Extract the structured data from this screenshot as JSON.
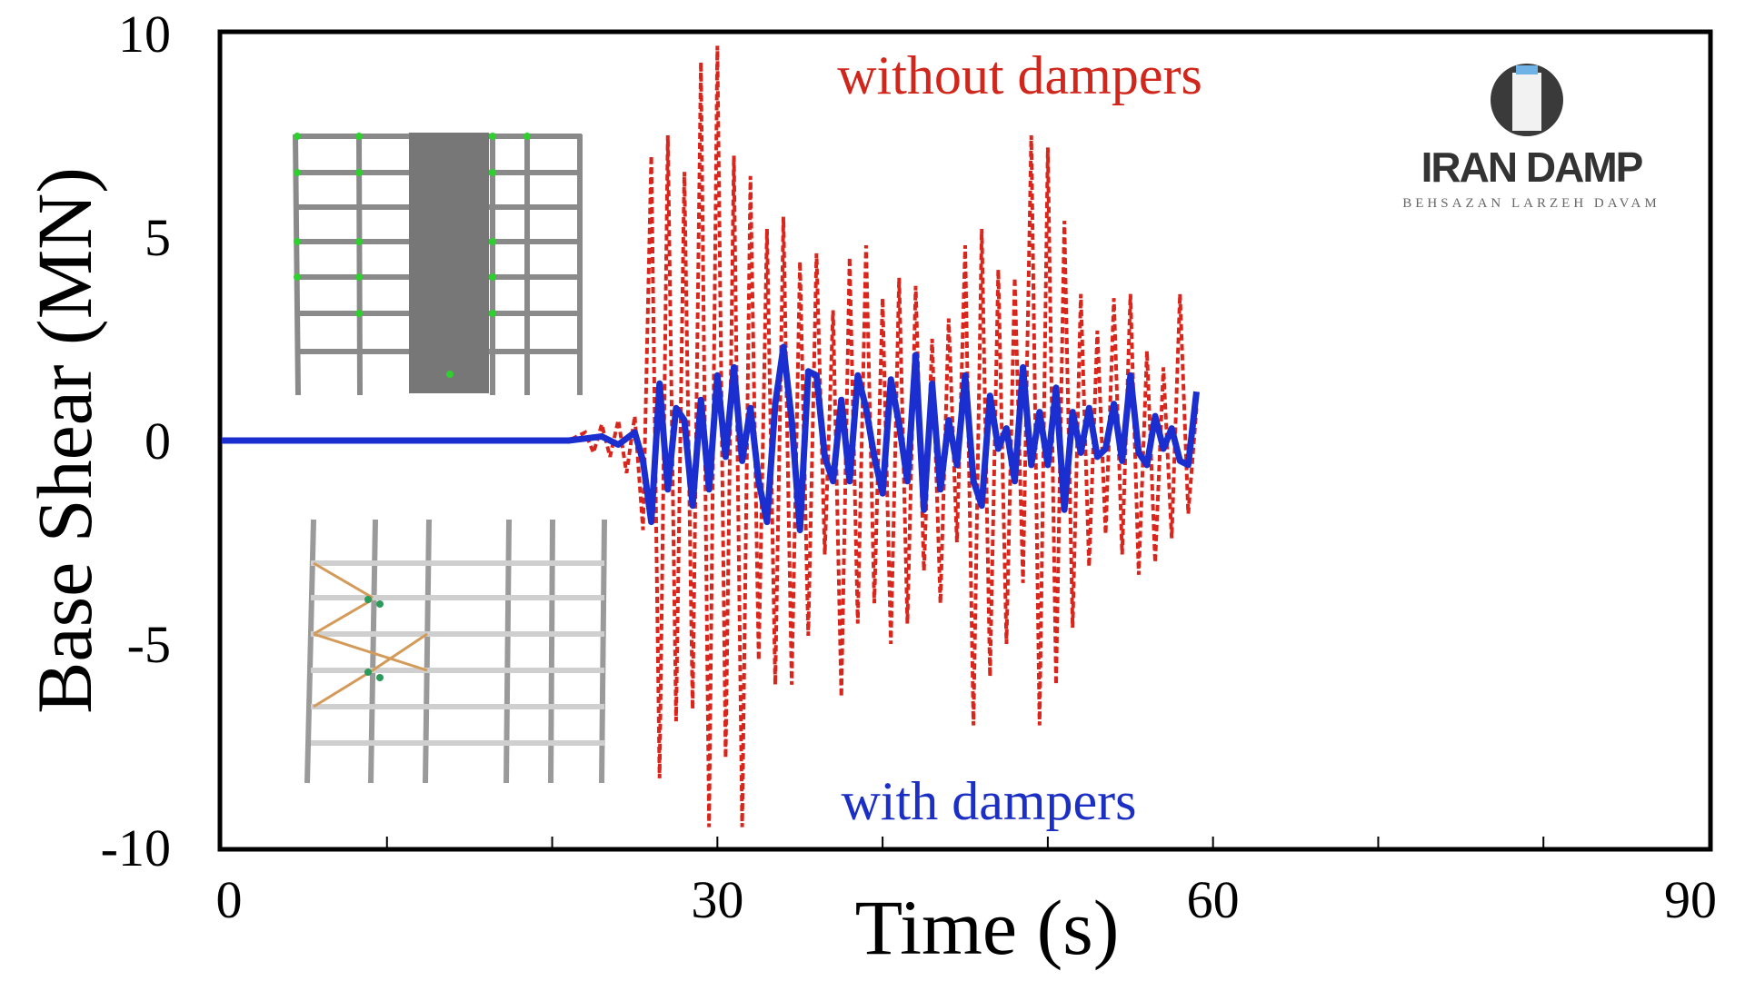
{
  "chart_data": {
    "type": "line",
    "title": "",
    "xlabel": "Time (s)",
    "ylabel": "Base Shear (MN)",
    "xlim": [
      0,
      90
    ],
    "ylim": [
      -10,
      10
    ],
    "xticks": [
      "0",
      "30",
      "60",
      "90"
    ],
    "yticks": [
      "10",
      "5",
      "0",
      "-5",
      "-10"
    ],
    "grid": false,
    "series": [
      {
        "name": "without dampers",
        "style": "dashed",
        "color": "#d9261c",
        "x": [
          0,
          21,
          22,
          22.5,
          23,
          23.5,
          24,
          24.5,
          25,
          25.5,
          26,
          26.5,
          27,
          27.5,
          28,
          28.5,
          29,
          29.5,
          30,
          30.5,
          31,
          31.5,
          32,
          32.5,
          33,
          33.5,
          34,
          34.5,
          35,
          35.5,
          36,
          36.5,
          37,
          37.5,
          38,
          38.5,
          39,
          39.5,
          40,
          40.5,
          41,
          41.5,
          42,
          42.5,
          43,
          43.5,
          44,
          44.5,
          45,
          45.5,
          46,
          46.5,
          47,
          47.5,
          48,
          48.5,
          49,
          49.5,
          50,
          50.5,
          51,
          51.5,
          52,
          52.5,
          53,
          53.5,
          54,
          54.5,
          55,
          55.5,
          56,
          56.5,
          57,
          57.5,
          58,
          58.5,
          59
        ],
        "y": [
          0,
          0,
          0.2,
          -0.3,
          0.4,
          -0.4,
          0.5,
          -0.8,
          0.6,
          -2.2,
          7.0,
          -8.3,
          7.5,
          -6.9,
          6.6,
          -6.6,
          9.3,
          -9.5,
          9.7,
          -7.8,
          7.0,
          -9.5,
          6.5,
          -5.4,
          5.2,
          -6.0,
          5.5,
          -6.0,
          4.4,
          -4.8,
          4.6,
          -2.8,
          3.2,
          -6.3,
          4.5,
          -4.5,
          4.8,
          -4.0,
          3.5,
          -5.0,
          4.0,
          -4.5,
          3.8,
          -3.2,
          2.5,
          -4.0,
          3.0,
          -2.5,
          4.8,
          -7.0,
          5.2,
          -5.8,
          4.2,
          -5.0,
          4.0,
          -3.5,
          7.5,
          -7.0,
          7.2,
          -6.0,
          5.4,
          -4.6,
          3.6,
          -3.1,
          2.7,
          -2.3,
          3.5,
          -2.8,
          3.6,
          -3.3,
          2.2,
          -3.0,
          1.8,
          -2.4,
          3.6,
          -1.8,
          0.8
        ]
      },
      {
        "name": "with dampers",
        "style": "solid",
        "color": "#1b2ecf",
        "x": [
          0,
          21,
          22,
          23,
          24,
          25,
          25.5,
          26,
          26.5,
          27,
          27.5,
          28,
          28.5,
          29,
          29.5,
          30,
          30.5,
          31,
          31.5,
          32,
          32.5,
          33,
          33.5,
          34,
          34.5,
          35,
          35.5,
          36,
          36.5,
          37,
          37.5,
          38,
          38.5,
          39,
          39.5,
          40,
          40.5,
          41,
          41.5,
          42,
          42.5,
          43,
          43.5,
          44,
          44.5,
          45,
          45.5,
          46,
          46.5,
          47,
          47.5,
          48,
          48.5,
          49,
          49.5,
          50,
          50.5,
          51,
          51.5,
          52,
          52.5,
          53,
          53.5,
          54,
          54.5,
          55,
          55.5,
          56,
          56.5,
          57,
          57.5,
          58,
          58.5,
          59
        ],
        "y": [
          0,
          0,
          0.05,
          0.1,
          -0.1,
          0.2,
          -0.5,
          -2.0,
          1.4,
          -1.2,
          0.8,
          0.5,
          -1.6,
          1.0,
          -1.2,
          1.6,
          -0.4,
          1.8,
          -0.5,
          0.8,
          -1.0,
          -2.0,
          0.9,
          2.3,
          0.5,
          -2.2,
          1.7,
          1.6,
          -0.4,
          -1.0,
          1.0,
          -1.0,
          1.6,
          0.8,
          -0.4,
          -1.3,
          1.5,
          0.4,
          -1.0,
          2.1,
          -1.7,
          1.4,
          -1.2,
          0.5,
          -0.6,
          1.6,
          -1.0,
          -1.6,
          1.1,
          -0.2,
          0.3,
          -1.0,
          1.8,
          -0.6,
          0.7,
          -0.6,
          1.3,
          -1.7,
          0.7,
          -0.3,
          0.8,
          -0.4,
          -0.2,
          0.9,
          -0.5,
          1.6,
          -0.3,
          -0.6,
          0.6,
          -0.2,
          0.3,
          -0.5,
          -0.6,
          1.2
        ]
      }
    ],
    "annotations": [
      "without dampers",
      "with dampers"
    ]
  },
  "logo": {
    "name": "IRAN DAMP",
    "subtitle": "BEHSAZAN LARZEH DAVAM"
  }
}
